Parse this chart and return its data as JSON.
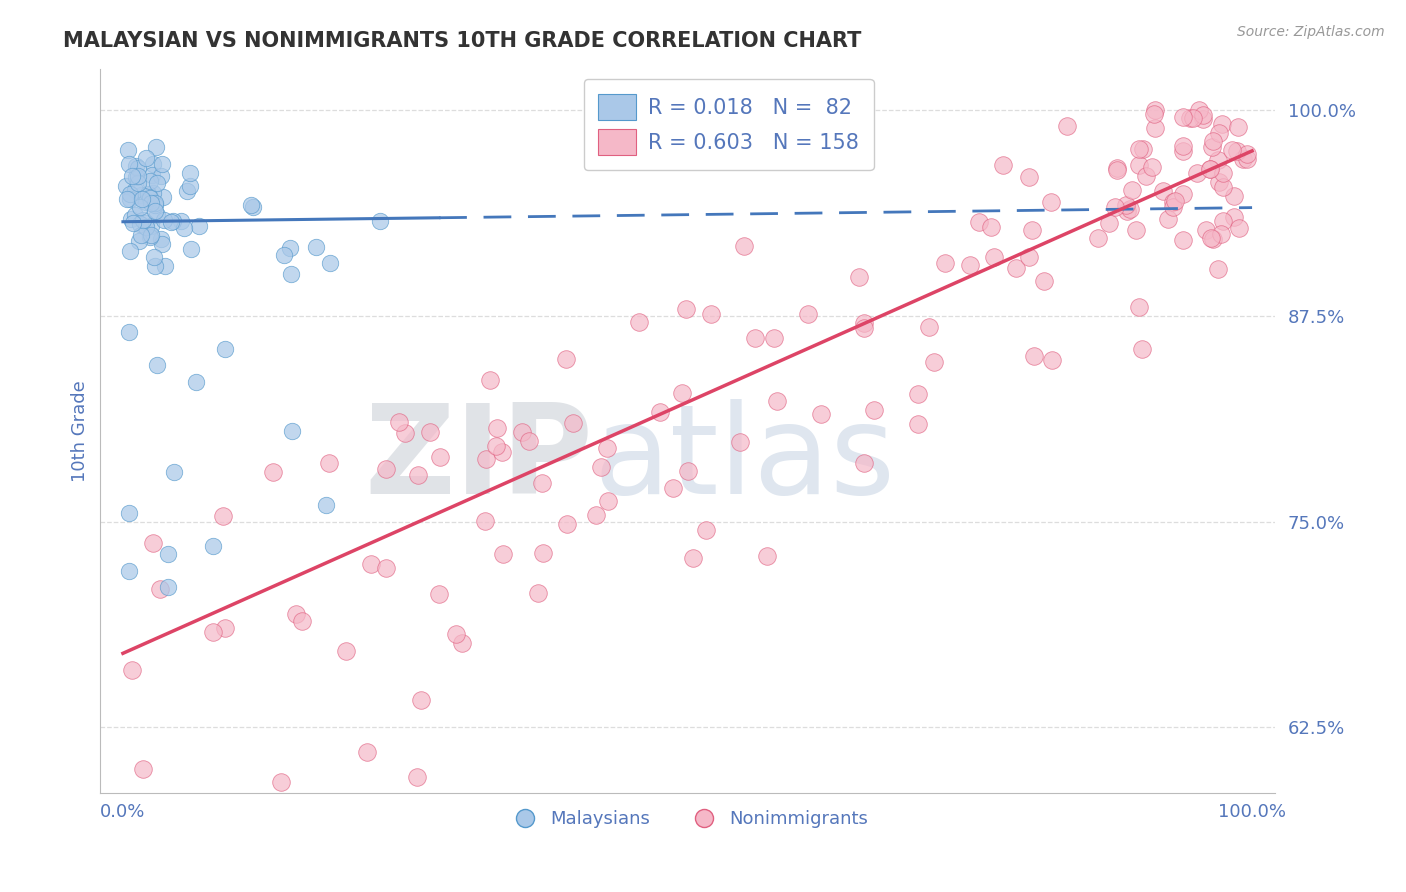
{
  "title": "MALAYSIAN VS NONIMMIGRANTS 10TH GRADE CORRELATION CHART",
  "source_text": "Source: ZipAtlas.com",
  "ylabel": "10th Grade",
  "xlabel": "",
  "xlim": [
    -0.02,
    1.02
  ],
  "ylim": [
    0.585,
    1.025
  ],
  "yticks": [
    0.625,
    0.75,
    0.875,
    1.0
  ],
  "ytick_labels": [
    "62.5%",
    "75.0%",
    "87.5%",
    "100.0%"
  ],
  "xtick_labels": [
    "0.0%",
    "100.0%"
  ],
  "xticks": [
    0.0,
    1.0
  ],
  "malaysian_color": "#aac8e8",
  "nonimmigrant_color": "#f5b8c8",
  "malaysian_edge_color": "#5599cc",
  "nonimmigrant_edge_color": "#e06080",
  "malaysian_line_color": "#4477bb",
  "nonimmigrant_line_color": "#dd4466",
  "r_blue": 0.018,
  "n_blue": 82,
  "r_pink": 0.603,
  "n_pink": 158,
  "watermark_zip": "ZIP",
  "watermark_atlas": "atlas",
  "grid_color": "#dddddd",
  "right_label_color": "#5577bb",
  "title_color": "#333333",
  "background_color": "#ffffff",
  "pink_trend_x0": 0.0,
  "pink_trend_y0": 0.67,
  "pink_trend_x1": 1.0,
  "pink_trend_y1": 0.975,
  "blue_trend_x0": 0.0,
  "blue_trend_y0": 0.932,
  "blue_trend_x1": 0.35,
  "blue_trend_y1": 0.935
}
